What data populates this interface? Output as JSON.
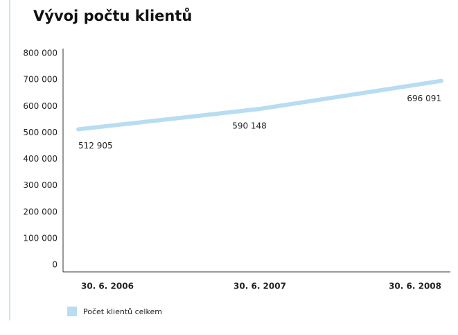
{
  "chart_data": {
    "type": "line",
    "title": "Vývoj počtu klientů",
    "categories": [
      "30. 6. 2006",
      "30. 6. 2007",
      "30. 6. 2008"
    ],
    "series": [
      {
        "name": "Počet klientů celkem",
        "color": "#b8ddf2",
        "values": [
          512905,
          590148,
          696091
        ],
        "value_labels": [
          "512 905",
          "590 148",
          "696 091"
        ]
      }
    ],
    "ylim": [
      0,
      800000
    ],
    "yticks": [
      {
        "value": 0,
        "label": "0"
      },
      {
        "value": 100000,
        "label": "100 000"
      },
      {
        "value": 200000,
        "label": "200 000"
      },
      {
        "value": 300000,
        "label": "300 000"
      },
      {
        "value": 400000,
        "label": "400 000"
      },
      {
        "value": 500000,
        "label": "500 000"
      },
      {
        "value": 600000,
        "label": "600 000"
      },
      {
        "value": 700000,
        "label": "700 000"
      },
      {
        "value": 800000,
        "label": "800 000"
      }
    ],
    "grid": false,
    "legend": "bottom-left"
  }
}
